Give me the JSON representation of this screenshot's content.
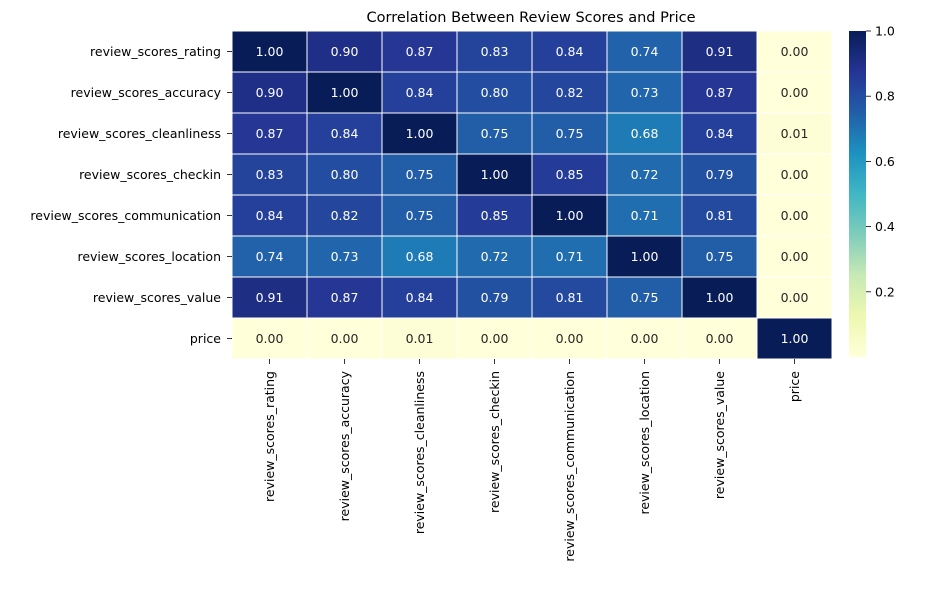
{
  "chart_data": {
    "type": "heatmap",
    "title": "Correlation Between Review Scores and Price",
    "rows": [
      "review_scores_rating",
      "review_scores_accuracy",
      "review_scores_cleanliness",
      "review_scores_checkin",
      "review_scores_communication",
      "review_scores_location",
      "review_scores_value",
      "price"
    ],
    "columns": [
      "review_scores_rating",
      "review_scores_accuracy",
      "review_scores_cleanliness",
      "review_scores_checkin",
      "review_scores_communication",
      "review_scores_location",
      "review_scores_value",
      "price"
    ],
    "values": [
      [
        1.0,
        0.9,
        0.87,
        0.83,
        0.84,
        0.74,
        0.91,
        0.0
      ],
      [
        0.9,
        1.0,
        0.84,
        0.8,
        0.82,
        0.73,
        0.87,
        0.0
      ],
      [
        0.87,
        0.84,
        1.0,
        0.75,
        0.75,
        0.68,
        0.84,
        0.01
      ],
      [
        0.83,
        0.8,
        0.75,
        1.0,
        0.85,
        0.72,
        0.79,
        0.0
      ],
      [
        0.84,
        0.82,
        0.75,
        0.85,
        1.0,
        0.71,
        0.81,
        0.0
      ],
      [
        0.74,
        0.73,
        0.68,
        0.72,
        0.71,
        1.0,
        0.75,
        0.0
      ],
      [
        0.91,
        0.87,
        0.84,
        0.79,
        0.81,
        0.75,
        1.0,
        0.0
      ],
      [
        0.0,
        0.0,
        0.01,
        0.0,
        0.0,
        0.0,
        0.0,
        1.0
      ]
    ],
    "colormap": "YlGnBu",
    "colorbar": {
      "range": [
        0.0,
        1.0
      ],
      "ticks": [
        0.2,
        0.4,
        0.6,
        0.8,
        1.0
      ],
      "tick_labels": [
        "0.2",
        "0.4",
        "0.6",
        "0.8",
        "1.0"
      ]
    },
    "annotations": true,
    "grid": false,
    "legend": "colorbar-right"
  }
}
